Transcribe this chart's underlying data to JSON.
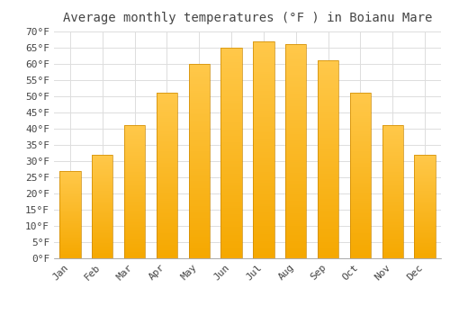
{
  "title": "Average monthly temperatures (°F ) in Boianu Mare",
  "months": [
    "Jan",
    "Feb",
    "Mar",
    "Apr",
    "May",
    "Jun",
    "Jul",
    "Aug",
    "Sep",
    "Oct",
    "Nov",
    "Dec"
  ],
  "values": [
    27,
    32,
    41,
    51,
    60,
    65,
    67,
    66,
    61,
    51,
    41,
    32
  ],
  "bar_color_top": "#FFC84A",
  "bar_color_bottom": "#F5A800",
  "bar_edge_color": "#CC8800",
  "background_color": "#FFFFFF",
  "grid_color": "#DDDDDD",
  "text_color": "#444444",
  "ylim": [
    0,
    70
  ],
  "ytick_step": 5,
  "title_fontsize": 10,
  "tick_fontsize": 8,
  "font_family": "monospace"
}
